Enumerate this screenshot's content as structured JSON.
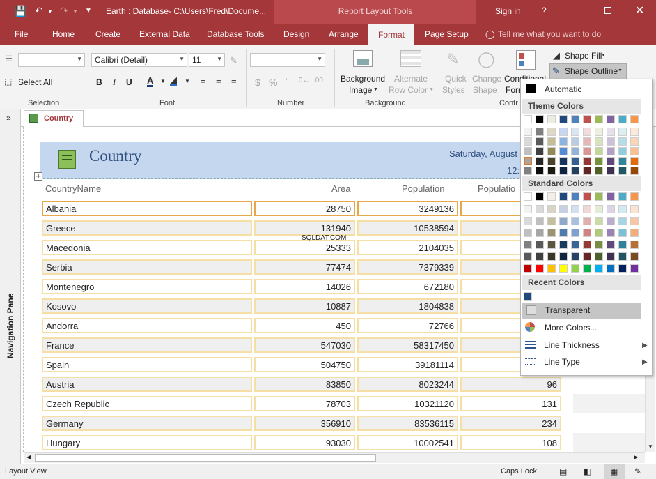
{
  "titlebar": {
    "title": "Earth : Database- C:\\Users\\Fred\\Docume...",
    "context_group": "Report Layout Tools",
    "signin": "Sign in",
    "help": "?"
  },
  "tabs": [
    "File",
    "Home",
    "Create",
    "External Data",
    "Database Tools",
    "Design",
    "Arrange",
    "Format",
    "Page Setup"
  ],
  "active_tab": "Format",
  "tell_me": "Tell me what you want to do",
  "ribbon": {
    "selection": {
      "label": "Selection",
      "select_all": "Select All",
      "object_value": ""
    },
    "font": {
      "label": "Font",
      "name": "Calibri (Detail)",
      "size": "11",
      "bold": "B",
      "italic": "I",
      "underline": "U"
    },
    "number": {
      "label": "Number",
      "format_value": "",
      "currency": "$",
      "percent": "%"
    },
    "background": {
      "label": "Background",
      "bg_image_1": "Background",
      "bg_image_2": "Image",
      "alt_row_1": "Alternate",
      "alt_row_2": "Row Color"
    },
    "control": {
      "label": "Contr",
      "quick_1": "Quick",
      "quick_2": "Styles",
      "change_1": "Change",
      "change_2": "Shape",
      "cond_1": "Conditional",
      "cond_2": "Form",
      "shape_fill": "Shape Fill",
      "shape_outline": "Shape Outline"
    }
  },
  "nav_pane": {
    "label": "Navigation Pane",
    "toggle": "»"
  },
  "doc_tab": "Country",
  "report": {
    "title": "Country",
    "date": "Saturday, August",
    "time": "12:",
    "columns": [
      "CountryName",
      "Area",
      "Population",
      "Populatio"
    ],
    "rows": [
      {
        "name": "Albania",
        "area": "28750",
        "population": "3249136",
        "extra": ""
      },
      {
        "name": "Greece",
        "area": "131940",
        "population": "10538594",
        "extra": ""
      },
      {
        "name": "Macedonia",
        "area": "25333",
        "population": "2104035",
        "extra": ""
      },
      {
        "name": "Serbia",
        "area": "77474",
        "population": "7379339",
        "extra": ""
      },
      {
        "name": "Montenegro",
        "area": "14026",
        "population": "672180",
        "extra": ""
      },
      {
        "name": "Kosovo",
        "area": "10887",
        "population": "1804838",
        "extra": ""
      },
      {
        "name": "Andorra",
        "area": "450",
        "population": "72766",
        "extra": ""
      },
      {
        "name": "France",
        "area": "547030",
        "population": "58317450",
        "extra": ""
      },
      {
        "name": "Spain",
        "area": "504750",
        "population": "39181114",
        "extra": ""
      },
      {
        "name": "Austria",
        "area": "83850",
        "population": "8023244",
        "extra": "96"
      },
      {
        "name": "Czech Republic",
        "area": "78703",
        "population": "10321120",
        "extra": "131"
      },
      {
        "name": "Germany",
        "area": "356910",
        "population": "83536115",
        "extra": "234"
      },
      {
        "name": "Hungary",
        "area": "93030",
        "population": "10002541",
        "extra": "108"
      }
    ]
  },
  "watermark": "SQLDAT.COM",
  "dropdown": {
    "automatic": "Automatic",
    "theme_header": "Theme Colors",
    "standard_header": "Standard Colors",
    "recent_header": "Recent Colors",
    "transparent": "Transparent",
    "more_colors": "More Colors...",
    "line_thickness": "Line Thickness",
    "line_type": "Line Type",
    "theme_top": [
      "#ffffff",
      "#000000",
      "#eeece1",
      "#1f497d",
      "#4f81bd",
      "#c0504d",
      "#9bbb59",
      "#8064a2",
      "#4bacc6",
      "#f79646"
    ],
    "theme_cols": [
      [
        "#f2f2f2",
        "#d9d9d9",
        "#bfbfbf",
        "#a6a6a6",
        "#808080"
      ],
      [
        "#7f7f7f",
        "#595959",
        "#404040",
        "#262626",
        "#0d0d0d"
      ],
      [
        "#ddd9c4",
        "#c4bd97",
        "#948a54",
        "#4a452a",
        "#1d1b10"
      ],
      [
        "#c6d9f0",
        "#8db3e2",
        "#548dd4",
        "#17365d",
        "#0f243e"
      ],
      [
        "#dbe5f1",
        "#b8cce4",
        "#95b3d7",
        "#366092",
        "#244061"
      ],
      [
        "#f2dcdb",
        "#e6b9b8",
        "#d99694",
        "#953735",
        "#632523"
      ],
      [
        "#ebf1dd",
        "#d7e3bc",
        "#c3d69b",
        "#76923c",
        "#4f6128"
      ],
      [
        "#e5e0ec",
        "#ccc1d9",
        "#b2a1c7",
        "#5f497a",
        "#3f3151"
      ],
      [
        "#dbeef3",
        "#b7dde8",
        "#92cddc",
        "#31859b",
        "#205867"
      ],
      [
        "#fdeada",
        "#fbd5b5",
        "#fac08f",
        "#e36c09",
        "#974806"
      ]
    ],
    "std_top": [
      "#ffffff",
      "#000000",
      "#f2f0e6",
      "#1f497d",
      "#4f81bd",
      "#c0504d",
      "#9bbb59",
      "#8064a2",
      "#4bacc6",
      "#f79646"
    ],
    "std_rows": [
      [
        "#f2f2f2",
        "#d9d9d9",
        "#d8d5c6",
        "#c6d2e3",
        "#d4dff0",
        "#f0d6d5",
        "#e3ecd4",
        "#dcd5e6",
        "#d2eaf1",
        "#fbe3d1"
      ],
      [
        "#d9d9d9",
        "#bfbfbf",
        "#c4bf9f",
        "#8ea9c9",
        "#a9c0e0",
        "#e0aeac",
        "#c9dba9",
        "#baadcd",
        "#a6d5e3",
        "#f8c8a4"
      ],
      [
        "#bfbfbf",
        "#a6a6a6",
        "#9c9370",
        "#4f7baf",
        "#7ea1d1",
        "#d08584",
        "#afca7f",
        "#9883b4",
        "#7ac1d5",
        "#f5ad77"
      ],
      [
        "#808080",
        "#595959",
        "#5b5640",
        "#173a5e",
        "#3a6496",
        "#953935",
        "#748e43",
        "#5e4a7a",
        "#2f8098",
        "#b96f33"
      ],
      [
        "#595959",
        "#404040",
        "#3a3726",
        "#0f263e",
        "#264264",
        "#632624",
        "#4d5f2d",
        "#3f3251",
        "#205565",
        "#7b4a22"
      ],
      [
        "#c00000",
        "#ff0000",
        "#ffc000",
        "#ffff00",
        "#92d050",
        "#00b050",
        "#00b0f0",
        "#0070c0",
        "#002060",
        "#7030a0"
      ]
    ],
    "recent": [
      "#1f497d"
    ]
  },
  "status": {
    "view": "Layout View",
    "caps": "Caps Lock"
  }
}
